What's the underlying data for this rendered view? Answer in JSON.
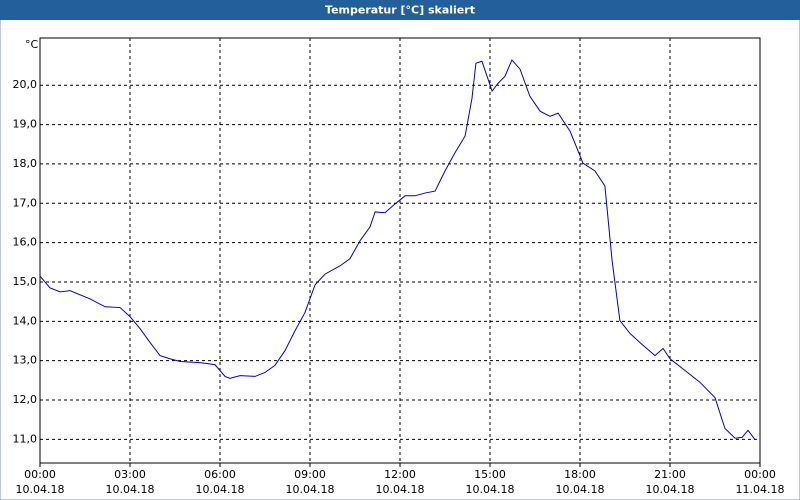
{
  "chart_data": {
    "type": "line",
    "title": "Temperatur [°C] skaliert",
    "y_unit": "°C",
    "color": "#0000c8",
    "grid": true,
    "x": [
      0,
      0.33,
      0.67,
      1.0,
      1.67,
      2.17,
      2.67,
      3.0,
      3.33,
      3.67,
      4.0,
      4.33,
      4.67,
      5.33,
      5.83,
      6.17,
      6.33,
      6.67,
      7.17,
      7.5,
      7.83,
      8.17,
      8.5,
      8.83,
      9.17,
      9.5,
      10.0,
      10.33,
      10.67,
      11.0,
      11.17,
      11.5,
      11.83,
      12.17,
      12.5,
      12.83,
      13.17,
      13.5,
      13.83,
      14.17,
      14.4,
      14.53,
      14.73,
      14.87,
      15.07,
      15.27,
      15.5,
      15.73,
      16.0,
      16.33,
      16.67,
      17.0,
      17.27,
      17.67,
      18.1,
      18.5,
      18.83,
      19.07,
      19.33,
      19.67,
      20.0,
      20.5,
      20.77,
      21.0,
      21.5,
      22.0,
      22.5,
      22.83,
      23.17,
      23.4,
      23.6,
      23.83
    ],
    "values": [
      15.15,
      14.85,
      14.75,
      14.78,
      14.57,
      14.37,
      14.35,
      14.12,
      13.82,
      13.46,
      13.13,
      13.05,
      12.98,
      12.95,
      12.9,
      12.6,
      12.55,
      12.62,
      12.6,
      12.7,
      12.88,
      13.26,
      13.76,
      14.22,
      14.93,
      15.2,
      15.41,
      15.59,
      16.05,
      16.4,
      16.78,
      16.76,
      16.98,
      17.19,
      17.19,
      17.26,
      17.31,
      17.82,
      18.28,
      18.71,
      19.67,
      20.56,
      20.61,
      20.3,
      19.85,
      20.05,
      20.23,
      20.64,
      20.41,
      19.72,
      19.34,
      19.21,
      19.29,
      18.83,
      18.02,
      17.82,
      17.44,
      15.54,
      14.02,
      13.69,
      13.46,
      13.13,
      13.31,
      13.05,
      12.75,
      12.45,
      12.06,
      11.28,
      11.03,
      11.05,
      11.23,
      11.0
    ],
    "xlim": [
      0,
      24
    ],
    "xticks": [
      {
        "value": 0,
        "label": "00:00"
      },
      {
        "value": 3,
        "label": "03:00"
      },
      {
        "value": 6,
        "label": "06:00"
      },
      {
        "value": 9,
        "label": "09:00"
      },
      {
        "value": 12,
        "label": "12:00"
      },
      {
        "value": 15,
        "label": "15:00"
      },
      {
        "value": 18,
        "label": "18:00"
      },
      {
        "value": 21,
        "label": "21:00"
      },
      {
        "value": 24,
        "label": "00:00"
      }
    ],
    "xtick_dates": [
      "10.04.18",
      "10.04.18",
      "10.04.18",
      "10.04.18",
      "10.04.18",
      "10.04.18",
      "10.04.18",
      "10.04.18",
      "11.04.18"
    ],
    "ylim": [
      10.4,
      21.2
    ],
    "yticks": [
      {
        "value": 11,
        "label": "11,0"
      },
      {
        "value": 12,
        "label": "12,0"
      },
      {
        "value": 13,
        "label": "13,0"
      },
      {
        "value": 14,
        "label": "14,0"
      },
      {
        "value": 15,
        "label": "15,0"
      },
      {
        "value": 16,
        "label": "16,0"
      },
      {
        "value": 17,
        "label": "17,0"
      },
      {
        "value": 18,
        "label": "18,0"
      },
      {
        "value": 19,
        "label": "19,0"
      },
      {
        "value": 20,
        "label": "20,0"
      }
    ]
  }
}
